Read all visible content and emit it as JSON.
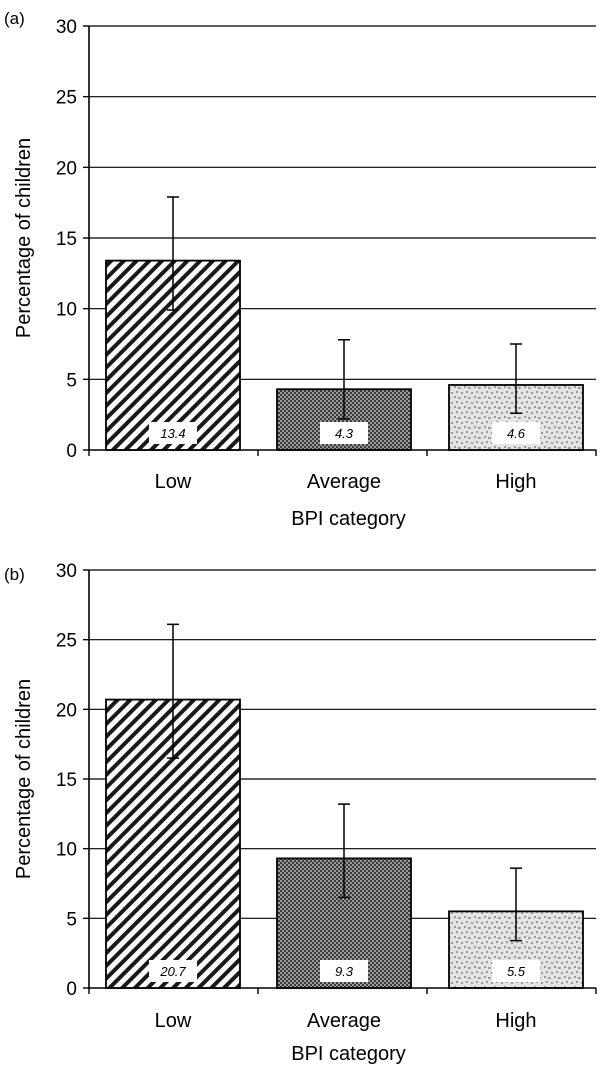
{
  "chart_data": [
    {
      "type": "bar",
      "panel_label": "(a)",
      "categories": [
        "Low",
        "Average",
        "High"
      ],
      "values": [
        13.4,
        4.3,
        4.6
      ],
      "data_labels": [
        "13.4",
        "4.3",
        "4.6"
      ],
      "error_bars": [
        {
          "low": 9.9,
          "high": 17.9
        },
        {
          "low": 2.2,
          "high": 7.8
        },
        {
          "low": 2.6,
          "high": 7.5
        }
      ],
      "xlabel": "BPI category",
      "ylabel": "Percentage of children",
      "ylim": [
        0,
        30
      ],
      "yticks": [
        0,
        5,
        10,
        15,
        20,
        25,
        30
      ],
      "ytick_labels": [
        "0",
        "5",
        "10",
        "15",
        "20",
        "25",
        "30"
      ],
      "grid": true,
      "bar_patterns": [
        "diagonal-hatch",
        "dense-checker",
        "light-dotted"
      ]
    },
    {
      "type": "bar",
      "panel_label": "(b)",
      "categories": [
        "Low",
        "Average",
        "High"
      ],
      "values": [
        20.7,
        9.3,
        5.5
      ],
      "data_labels": [
        "20.7",
        "9.3",
        "5.5"
      ],
      "error_bars": [
        {
          "low": 16.5,
          "high": 26.1
        },
        {
          "low": 6.5,
          "high": 13.2
        },
        {
          "low": 3.4,
          "high": 8.6
        }
      ],
      "xlabel": "BPI category",
      "ylabel": "Percentage of children",
      "ylim": [
        0,
        30
      ],
      "yticks": [
        0,
        5,
        10,
        15,
        20,
        25,
        30
      ],
      "ytick_labels": [
        "0",
        "5",
        "10",
        "15",
        "20",
        "25",
        "30"
      ],
      "grid": true,
      "bar_patterns": [
        "diagonal-hatch",
        "dense-checker",
        "light-dotted"
      ]
    }
  ]
}
